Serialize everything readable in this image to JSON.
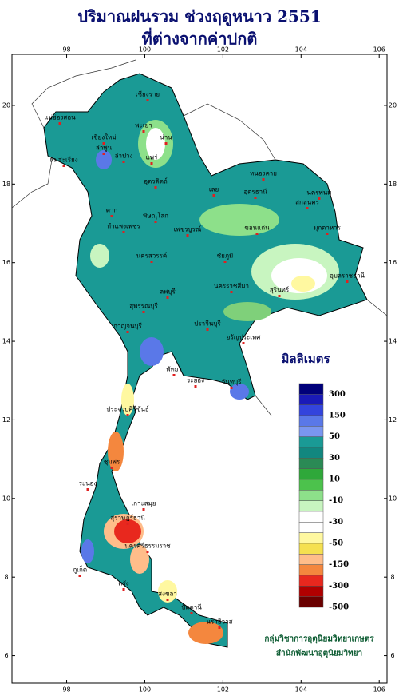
{
  "title": [
    "ปริมาณฝนรวม ช่วงฤดูหนาว 2551",
    "ที่ต่างจากค่าปกติ"
  ],
  "map": {
    "xlim": [
      96.6,
      106.2
    ],
    "ylim": [
      5.3,
      21.3
    ],
    "lon_ticks": [
      98,
      100,
      102,
      104,
      106
    ],
    "lat_ticks": [
      6,
      8,
      10,
      12,
      14,
      16,
      18,
      20
    ],
    "places": [
      "เชียงราย",
      "พะเยา",
      "เชียงใหม่",
      "ลำพูน",
      "น่าน",
      "ลำปาง",
      "แพร่",
      "แม่ฮ่องสอน",
      "แม่สะเรียง",
      "อุตรดิตถ์",
      "หนองคาย",
      "อุดรธานี",
      "นครพนม",
      "สกลนคร",
      "มุกดาหาร",
      "เลย",
      "ตาก",
      "พิษณุโลก",
      "เพชรบูรณ์",
      "ขอนแก่น",
      "กำแพงเพชร",
      "นครสวรรค์",
      "ชัยภูมิ",
      "ลพบุรี",
      "นครราชสีมา",
      "อุบลราชธานี",
      "สุรินทร์",
      "สุพรรณบุรี",
      "กาญจนบุรี",
      "ปราจีนบุรี",
      "อรัญประเทศ",
      "พัทยา",
      "ระยอง",
      "จันทบุรี",
      "ประจวบคีรีขันธ์",
      "ชุมพร",
      "ระนอง",
      "สุราษฎร์ธานี",
      "เกาะสมุย",
      "นครศรีธรรมราช",
      "ภูเก็ต",
      "ตรัง",
      "สงขลา",
      "ปัตตานี",
      "นราธิวาส"
    ]
  },
  "legend": {
    "title": "มิลลิเมตร",
    "labels": [
      300,
      150,
      50,
      30,
      10,
      -10,
      -30,
      -50,
      -150,
      -300,
      -500
    ],
    "colors": [
      "#00007a",
      "#1a1ab8",
      "#3344dd",
      "#5a78e8",
      "#7a96f0",
      "#1a9a95",
      "#12877f",
      "#2a8a55",
      "#2fa83a",
      "#4cc24c",
      "#8de08a",
      "#c8f5c0",
      "#ffffff",
      "#ffffff",
      "#fff8a0",
      "#f5e050",
      "#ffbd8a",
      "#f4873e",
      "#e8281e",
      "#b00000",
      "#6a0000"
    ]
  },
  "credits": [
    "กลุ่มวิชาการอุตุนิยมวิทยาเกษตร",
    "สำนักพัฒนาอุตุนิยมวิทยา"
  ]
}
